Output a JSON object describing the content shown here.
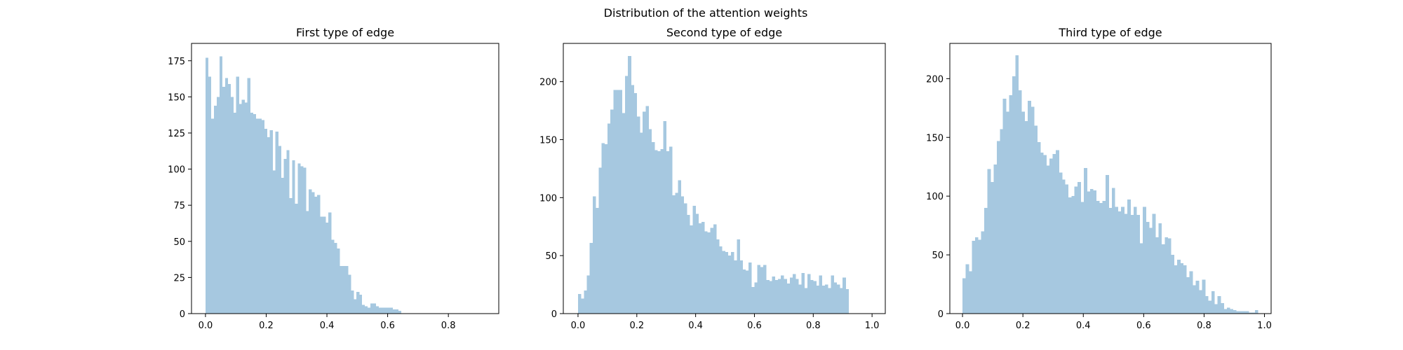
{
  "figure": {
    "suptitle": "Distribution of the attention weights",
    "bar_color": "#a6c8e0"
  },
  "chart_data": [
    {
      "type": "bar",
      "title": "First type of edge",
      "xlabel": "",
      "ylabel": "",
      "xlim": [
        -0.046,
        0.966
      ],
      "ylim": [
        0,
        187
      ],
      "grid": false,
      "x_ticks": [
        0.0,
        0.2,
        0.4,
        0.6,
        0.8
      ],
      "x_tick_labels": [
        "0.0",
        "0.2",
        "0.4",
        "0.6",
        "0.8"
      ],
      "y_ticks": [
        0,
        25,
        50,
        75,
        100,
        125,
        150,
        175
      ],
      "y_tick_labels": [
        "0",
        "25",
        "50",
        "75",
        "100",
        "125",
        "150",
        "175"
      ],
      "bin_start": 0.0,
      "bin_width": 0.0092,
      "values": [
        177,
        164,
        135,
        144,
        150,
        178,
        157,
        163,
        159,
        150,
        139,
        164,
        145,
        148,
        146,
        163,
        139,
        138,
        135,
        135,
        134,
        128,
        122,
        127,
        99,
        126,
        116,
        94,
        107,
        113,
        80,
        106,
        76,
        104,
        102,
        101,
        71,
        86,
        84,
        81,
        82,
        67,
        67,
        63,
        70,
        51,
        49,
        45,
        33,
        33,
        33,
        27,
        16,
        10,
        15,
        13,
        6,
        5,
        4,
        7,
        7,
        5,
        4,
        4,
        4,
        4,
        4,
        3,
        3,
        2
      ]
    },
    {
      "type": "bar",
      "title": "Second type of edge",
      "xlabel": "",
      "ylabel": "",
      "xlim": [
        -0.05,
        1.045
      ],
      "ylim": [
        0,
        233
      ],
      "grid": false,
      "x_ticks": [
        0.0,
        0.2,
        0.4,
        0.6,
        0.8,
        1.0
      ],
      "x_tick_labels": [
        "0.0",
        "0.2",
        "0.4",
        "0.6",
        "0.8",
        "1.0"
      ],
      "y_ticks": [
        0,
        50,
        100,
        150,
        200
      ],
      "y_tick_labels": [
        "0",
        "50",
        "100",
        "150",
        "200"
      ],
      "bin_start": 0.0,
      "bin_width": 0.01,
      "values": [
        17,
        13,
        20,
        33,
        61,
        101,
        91,
        126,
        147,
        146,
        164,
        176,
        193,
        193,
        193,
        173,
        205,
        222,
        197,
        190,
        170,
        156,
        174,
        179,
        159,
        148,
        141,
        140,
        142,
        166,
        140,
        144,
        102,
        104,
        115,
        101,
        95,
        85,
        76,
        93,
        86,
        78,
        79,
        71,
        70,
        74,
        77,
        64,
        58,
        54,
        53,
        50,
        53,
        46,
        64,
        46,
        38,
        37,
        44,
        23,
        27,
        42,
        40,
        42,
        29,
        28,
        32,
        29,
        30,
        33,
        30,
        26,
        31,
        34,
        30,
        25,
        35,
        22,
        34,
        29,
        28,
        24,
        33,
        24,
        25,
        22,
        33,
        27,
        25,
        22,
        31,
        21
      ]
    },
    {
      "type": "bar",
      "title": "Third type of edge",
      "xlabel": "",
      "ylabel": "",
      "xlim": [
        -0.042,
        1.022
      ],
      "ylim": [
        0,
        230
      ],
      "grid": false,
      "x_ticks": [
        0.0,
        0.2,
        0.4,
        0.6,
        0.8,
        1.0
      ],
      "x_tick_labels": [
        "0.0",
        "0.2",
        "0.4",
        "0.6",
        "0.8",
        "1.0"
      ],
      "y_ticks": [
        0,
        50,
        100,
        150,
        200
      ],
      "y_tick_labels": [
        "0",
        "50",
        "100",
        "150",
        "200"
      ],
      "bin_start": 0.0,
      "bin_width": 0.0103,
      "values": [
        30,
        42,
        36,
        62,
        65,
        63,
        70,
        90,
        123,
        112,
        127,
        147,
        157,
        183,
        172,
        186,
        202,
        220,
        190,
        172,
        164,
        181,
        176,
        160,
        146,
        137,
        135,
        126,
        132,
        136,
        139,
        120,
        114,
        110,
        99,
        100,
        108,
        112,
        95,
        124,
        104,
        106,
        105,
        96,
        94,
        96,
        118,
        90,
        107,
        91,
        87,
        91,
        85,
        97,
        84,
        91,
        84,
        60,
        91,
        78,
        73,
        85,
        65,
        77,
        59,
        65,
        64,
        50,
        41,
        46,
        43,
        41,
        31,
        36,
        24,
        28,
        20,
        29,
        15,
        11,
        19,
        8,
        15,
        9,
        4,
        5,
        4,
        3,
        2,
        2,
        2,
        2,
        1,
        1,
        3
      ]
    }
  ]
}
